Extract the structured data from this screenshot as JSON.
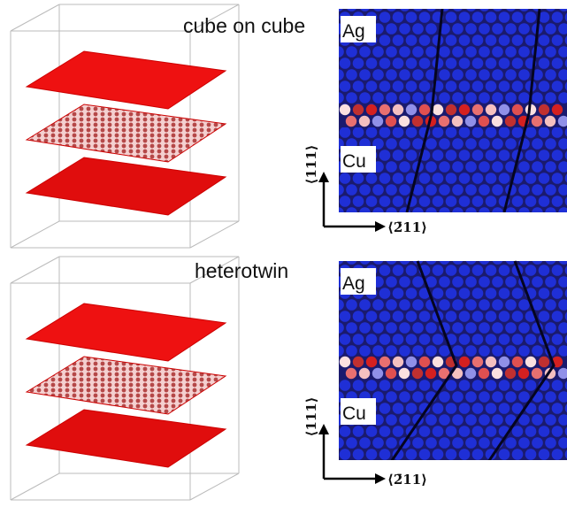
{
  "panels": [
    {
      "title": "cube on cube",
      "labels": {
        "top": "Ag",
        "bottom": "Cu"
      },
      "axes": {
        "vertical": "⟨111⟩",
        "horizontal": "⟨2̄11⟩"
      }
    },
    {
      "title": "heterotwin",
      "labels": {
        "top": "Ag",
        "bottom": "Cu"
      },
      "axes": {
        "vertical": "⟨111⟩",
        "horizontal": "⟨2̄11⟩"
      }
    }
  ]
}
